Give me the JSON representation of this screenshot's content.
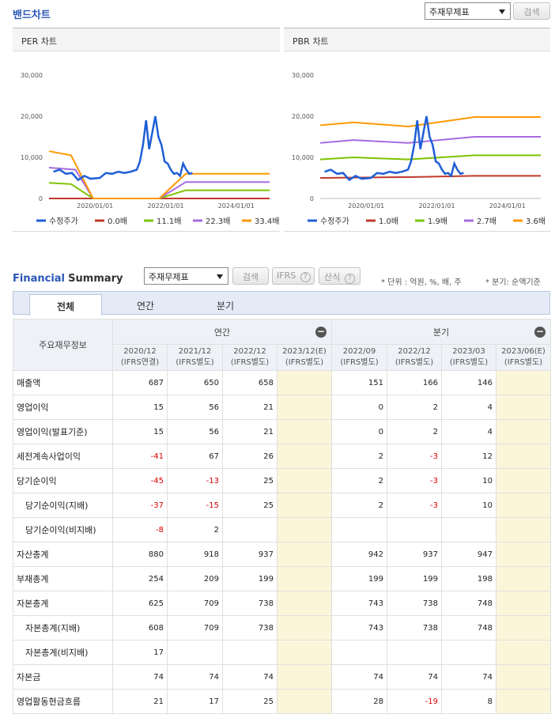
{
  "band": {
    "title": "밴드차트",
    "select_value": "주재무제표",
    "search_label": "검색"
  },
  "per_chart": {
    "title": "PER 차트",
    "y_ticks": [
      "30,000",
      "20,000",
      "10,000",
      "0"
    ],
    "x_ticks": [
      "2020/01/01",
      "2022/01/01",
      "2024/01/01"
    ],
    "legend": [
      {
        "label": "수정주가",
        "color": "#1f5fd6"
      },
      {
        "label": "0.0배",
        "color": "#c0392b"
      },
      {
        "label": "11.1배",
        "color": "#7cc400"
      },
      {
        "label": "22.3배",
        "color": "#a66be0"
      },
      {
        "label": "33.4배",
        "color": "#ff9900"
      }
    ]
  },
  "pbr_chart": {
    "title": "PBR 차트",
    "y_ticks": [
      "30,000",
      "20,000",
      "10,000",
      "0"
    ],
    "x_ticks": [
      "2020/01/01",
      "2022/01/01",
      "2024/01/01"
    ],
    "legend": [
      {
        "label": "수정주가",
        "color": "#1f5fd6"
      },
      {
        "label": "1.0배",
        "color": "#c0392b"
      },
      {
        "label": "1.9배",
        "color": "#7cc400"
      },
      {
        "label": "2.7배",
        "color": "#a66be0"
      },
      {
        "label": "3.6배",
        "color": "#ff9900"
      }
    ]
  },
  "fs": {
    "title_a": "Financial",
    "title_b": "Summary",
    "select_value": "주재무제표",
    "search_label": "검색",
    "ifrs_label": "IFRS",
    "calc_label": "산식",
    "unit_note": "* 단위 : 억원, %, 배, 주",
    "quarter_note": "* 분기: 순액기준",
    "tabs": [
      "전체",
      "연간",
      "분기"
    ],
    "head_label": "주요재무정보",
    "group_annual": "연간",
    "group_quarter": "분기",
    "periods": [
      {
        "date": "2020/12",
        "basis": "(IFRS연결)"
      },
      {
        "date": "2021/12",
        "basis": "(IFRS별도)"
      },
      {
        "date": "2022/12",
        "basis": "(IFRS별도)"
      },
      {
        "date": "2023/12(E)",
        "basis": "(IFRS별도)"
      },
      {
        "date": "2022/09",
        "basis": "(IFRS별도)"
      },
      {
        "date": "2022/12",
        "basis": "(IFRS별도)"
      },
      {
        "date": "2023/03",
        "basis": "(IFRS별도)"
      },
      {
        "date": "2023/06(E)",
        "basis": "(IFRS별도)"
      }
    ],
    "rows": [
      {
        "label": "매출액",
        "values": [
          "687",
          "650",
          "658",
          "",
          "151",
          "166",
          "146",
          ""
        ]
      },
      {
        "label": "영업이익",
        "values": [
          "15",
          "56",
          "21",
          "",
          "0",
          "2",
          "4",
          ""
        ]
      },
      {
        "label": "영업이익(발표기준)",
        "values": [
          "15",
          "56",
          "21",
          "",
          "0",
          "2",
          "4",
          ""
        ]
      },
      {
        "label": "세전계속사업이익",
        "values": [
          "-41",
          "67",
          "26",
          "",
          "2",
          "-3",
          "12",
          ""
        ]
      },
      {
        "label": "당기순이익",
        "values": [
          "-45",
          "-13",
          "25",
          "",
          "2",
          "-3",
          "10",
          ""
        ]
      },
      {
        "label": "당기순이익(지배)",
        "sub": true,
        "values": [
          "-37",
          "-15",
          "25",
          "",
          "2",
          "-3",
          "10",
          ""
        ]
      },
      {
        "label": "당기순이익(비지배)",
        "sub": true,
        "values": [
          "-8",
          "2",
          "",
          "",
          "",
          "",
          "",
          ""
        ]
      },
      {
        "label": "자산총계",
        "values": [
          "880",
          "918",
          "937",
          "",
          "942",
          "937",
          "947",
          ""
        ]
      },
      {
        "label": "부채총계",
        "values": [
          "254",
          "209",
          "199",
          "",
          "199",
          "199",
          "198",
          ""
        ]
      },
      {
        "label": "자본총계",
        "values": [
          "625",
          "709",
          "738",
          "",
          "743",
          "738",
          "748",
          ""
        ]
      },
      {
        "label": "자본총계(지배)",
        "sub": true,
        "values": [
          "608",
          "709",
          "738",
          "",
          "743",
          "738",
          "748",
          ""
        ]
      },
      {
        "label": "자본총계(비지배)",
        "sub": true,
        "values": [
          "17",
          "",
          "",
          "",
          "",
          "",
          "",
          ""
        ]
      },
      {
        "label": "자본금",
        "values": [
          "74",
          "74",
          "74",
          "",
          "74",
          "74",
          "74",
          ""
        ]
      },
      {
        "label": "영업활동현금흐름",
        "values": [
          "21",
          "17",
          "25",
          "",
          "28",
          "-19",
          "8",
          ""
        ]
      }
    ]
  }
}
